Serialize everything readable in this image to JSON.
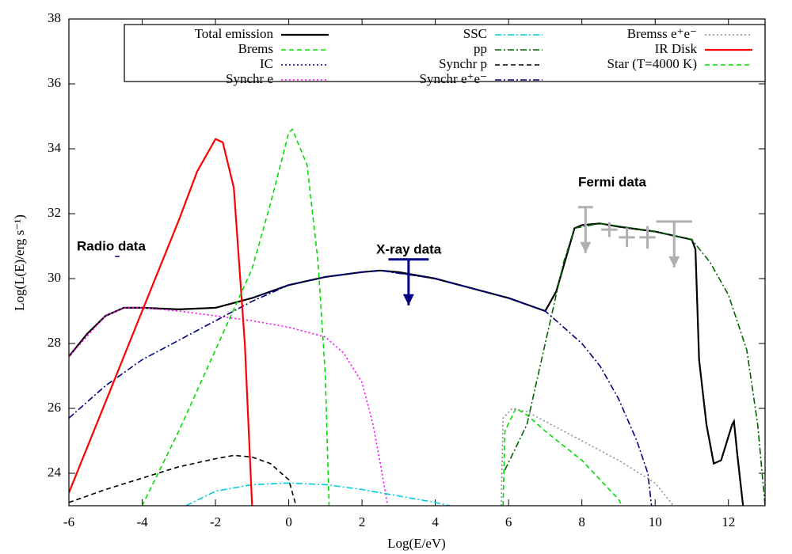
{
  "chart_data": {
    "type": "line",
    "x_label": "Log(E/eV)",
    "y_label": "Log(L(E)/erg s⁻¹)",
    "xlim": [
      -6,
      13
    ],
    "ylim": [
      23,
      38
    ],
    "xticks": [
      -6,
      -4,
      -2,
      0,
      2,
      4,
      6,
      8,
      10,
      12
    ],
    "yticks": [
      24,
      26,
      28,
      30,
      32,
      34,
      36,
      38
    ],
    "series": [
      {
        "name": "Total emission",
        "color": "#000000",
        "style": "solid",
        "x": [
          -6,
          -5.5,
          -5,
          -4.5,
          -4,
          -3,
          -2,
          -1,
          0,
          1,
          2,
          2.5,
          3,
          4,
          5,
          6,
          7,
          7.3,
          7.8,
          8,
          8.5,
          9,
          10,
          11,
          11.1,
          11.2,
          11.4,
          11.6,
          11.8,
          12.1,
          12.15,
          12.25,
          12.4
        ],
        "values": [
          27.6,
          28.3,
          28.85,
          29.1,
          29.1,
          29.05,
          29.1,
          29.4,
          29.8,
          30.05,
          30.2,
          30.25,
          30.2,
          30.0,
          29.7,
          29.4,
          29.0,
          29.6,
          31.55,
          31.65,
          31.7,
          31.6,
          31.45,
          31.2,
          30.9,
          27.5,
          25.5,
          24.3,
          24.4,
          25.5,
          25.6,
          24.5,
          23
        ]
      },
      {
        "name": "Brems",
        "color": "#00dd00",
        "style": "dashed",
        "x": [
          5.85,
          5.9,
          6.2,
          6.5,
          7,
          8,
          9,
          9.1
        ],
        "values": [
          23,
          25.3,
          26.0,
          25.8,
          25.3,
          24.4,
          23.2,
          23
        ]
      },
      {
        "name": "IC",
        "color": "#00008b",
        "style": "dotted",
        "x": [
          -1,
          0,
          1,
          2,
          2.5,
          4,
          6,
          7
        ],
        "values": [
          29.4,
          29.8,
          30.05,
          30.2,
          30.25,
          30.0,
          29.4,
          29.0
        ]
      },
      {
        "name": "Synchr e",
        "color": "#ff00ff",
        "style": "dotted",
        "x": [
          -6,
          -5,
          -4.5,
          -4,
          -3,
          -2,
          -1,
          0,
          1,
          1.5,
          2,
          2.3,
          2.5,
          2.7
        ],
        "values": [
          27.6,
          28.85,
          29.1,
          29.1,
          29.0,
          28.85,
          28.7,
          28.5,
          28.2,
          27.7,
          26.8,
          25.5,
          24.3,
          23
        ]
      },
      {
        "name": "SSC",
        "color": "#00ccdd",
        "style": "dashdot",
        "x": [
          -2.8,
          -2,
          -1,
          0,
          1,
          2,
          3,
          4,
          4.4
        ],
        "values": [
          23,
          23.45,
          23.65,
          23.7,
          23.65,
          23.5,
          23.3,
          23.1,
          23
        ]
      },
      {
        "name": "pp",
        "color": "#006400",
        "style": "dashdot",
        "x": [
          5.9,
          6.5,
          7,
          7.5,
          7.8,
          8.5,
          10,
          11,
          11.5,
          12,
          12.5,
          12.8,
          13
        ],
        "values": [
          24.1,
          25.5,
          28,
          30.5,
          31.55,
          31.7,
          31.45,
          31.2,
          30.5,
          29.5,
          27.8,
          25.5,
          23
        ]
      },
      {
        "name": "Synchr p",
        "color": "#000000",
        "style": "dashed",
        "x": [
          -6,
          -5,
          -4,
          -3,
          -2,
          -1.5,
          -1,
          -0.5,
          0,
          0.2
        ],
        "values": [
          23.1,
          23.5,
          23.85,
          24.2,
          24.45,
          24.55,
          24.5,
          24.3,
          23.8,
          23
        ]
      },
      {
        "name": "Synchr e⁺e⁻",
        "color": "#000080",
        "style": "dashdot",
        "x": [
          -6,
          -5,
          -4,
          -3,
          -2,
          -1,
          0,
          1,
          2,
          2.5,
          4,
          6,
          7,
          7.5,
          8,
          8.5,
          9,
          9.5,
          9.8,
          9.9
        ],
        "values": [
          25.7,
          26.7,
          27.5,
          28.1,
          28.7,
          29.3,
          29.8,
          30.05,
          30.2,
          30.25,
          30.0,
          29.4,
          29.0,
          28.5,
          28.0,
          27.3,
          26.3,
          25,
          24,
          23
        ]
      },
      {
        "name": "Bremss e⁺e⁻",
        "color": "#909090",
        "style": "dotted",
        "x": [
          5.8,
          5.85,
          6.1,
          6.5,
          7,
          8,
          9,
          10,
          10.5
        ],
        "values": [
          23,
          25.7,
          26.0,
          25.9,
          25.6,
          25,
          24.4,
          23.7,
          23
        ]
      },
      {
        "name": "IR Disk",
        "color": "#ff0000",
        "style": "solid",
        "x": [
          -6,
          -5,
          -4,
          -3,
          -2.5,
          -2,
          -1.8,
          -1.5,
          -1.2,
          -1
        ],
        "values": [
          23.4,
          26.2,
          29,
          31.8,
          33.3,
          34.3,
          34.2,
          32.8,
          28,
          23
        ]
      },
      {
        "name": "Star (T=4000 K)",
        "color": "#00dd00",
        "style": "dashed",
        "x": [
          -4,
          -3,
          -2,
          -1,
          -0.5,
          0,
          0.1,
          0.5,
          0.8,
          1,
          1.1
        ],
        "values": [
          23,
          25.3,
          27.8,
          30.3,
          32.3,
          34.5,
          34.6,
          33.5,
          30.5,
          27,
          23
        ]
      }
    ],
    "observations": [
      {
        "label": "Radio data",
        "color": "#000080",
        "points": [
          {
            "x": -4.68,
            "y": 30.68,
            "xerr": 0.06
          }
        ]
      },
      {
        "label": "X-ray data",
        "color": "#000080",
        "points": [
          {
            "x": 3.27,
            "y": 30.59,
            "xerr": 0.55,
            "upper_limit": true
          }
        ]
      },
      {
        "label": "Fermi data",
        "color": "#b0b0b0",
        "points": [
          {
            "x": 8.1,
            "y": 32.2,
            "xerr": 0.2,
            "upper_limit": true
          },
          {
            "x": 8.75,
            "y": 31.51,
            "xerr": 0.22,
            "yerr": 0.23
          },
          {
            "x": 9.23,
            "y": 31.27,
            "xerr": 0.22,
            "yerr": 0.3
          },
          {
            "x": 9.79,
            "y": 31.27,
            "xerr": 0.22,
            "yerr": 0.35
          },
          {
            "x": 10.52,
            "y": 31.76,
            "xerr": 0.49,
            "upper_limit": true
          }
        ]
      }
    ]
  }
}
